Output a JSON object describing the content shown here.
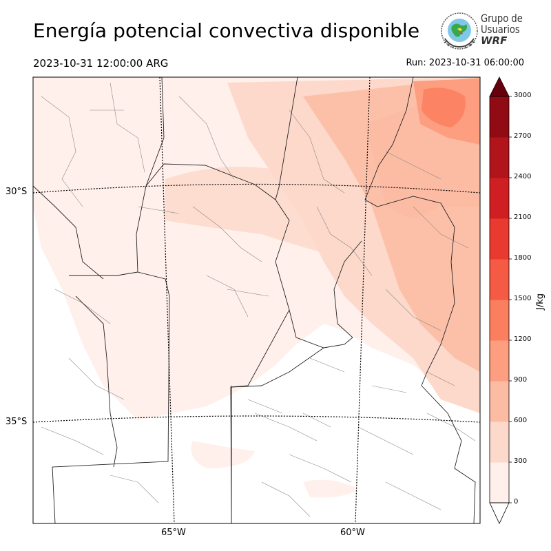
{
  "header": {
    "title": "Energía potencial convectiva disponible",
    "valid_time": "2023-10-31 12:00:00 ARG",
    "run_time": "Run: 2023-10-31 06:00:00"
  },
  "logo": {
    "line1": "Grupo de",
    "line2": "Usuarios",
    "line3": "WRF"
  },
  "map": {
    "lat_labels": [
      "30°S",
      "35°S"
    ],
    "lon_labels": [
      "65°W",
      "60°W"
    ]
  },
  "colorbar": {
    "label": "J/kg",
    "ticks": [
      "0",
      "300",
      "600",
      "900",
      "1200",
      "1500",
      "1800",
      "2100",
      "2400",
      "2700",
      "3000"
    ],
    "colors": [
      "#fff0eb",
      "#fdd9cb",
      "#fcbca4",
      "#fc9e7f",
      "#fb7f5f",
      "#f45a44",
      "#e83a2e",
      "#cf1f22",
      "#b1141a",
      "#900b13",
      "#6b0010"
    ],
    "extend_max_color": "#67000d"
  }
}
